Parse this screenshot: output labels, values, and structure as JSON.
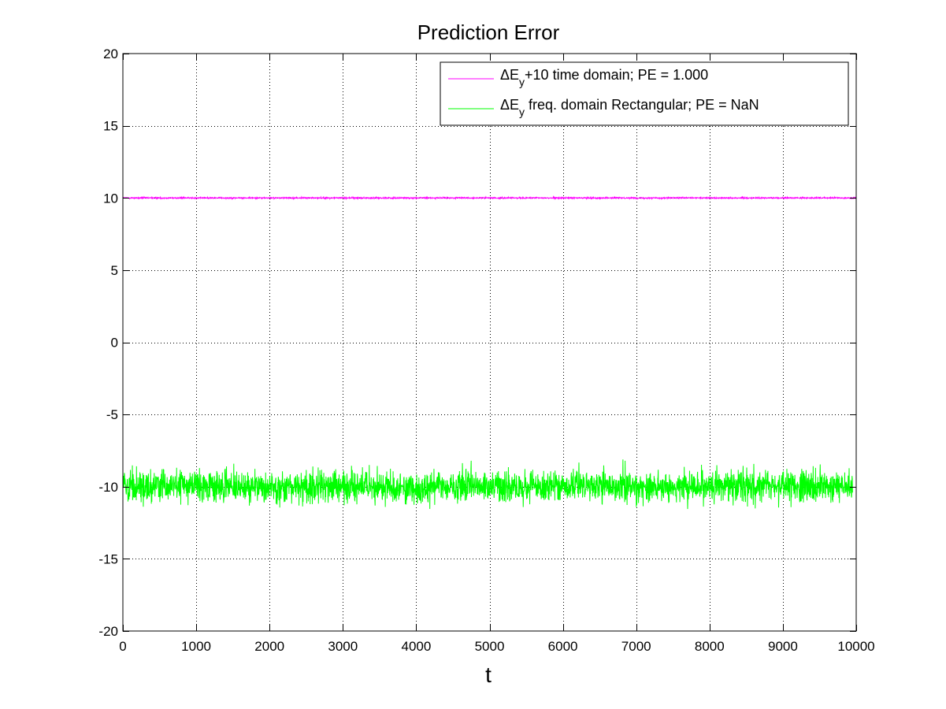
{
  "chart_data": {
    "type": "line",
    "title": "Prediction Error",
    "xlabel": "t",
    "ylabel": "",
    "xlim": [
      0,
      10000
    ],
    "ylim": [
      -20,
      20
    ],
    "xticks": [
      0,
      1000,
      2000,
      3000,
      4000,
      5000,
      6000,
      7000,
      8000,
      9000,
      10000
    ],
    "yticks": [
      20,
      15,
      10,
      5,
      0,
      -5,
      -10,
      -15,
      -20
    ],
    "xtick_labels": [
      "0",
      "1000",
      "2000",
      "3000",
      "4000",
      "5000",
      "6000",
      "7000",
      "8000",
      "9000",
      "10000"
    ],
    "ytick_labels": [
      "20",
      "15",
      "10",
      "5",
      "0",
      "-5",
      "-10",
      "-15",
      "-20"
    ],
    "grid": true,
    "legend_position": "top-right",
    "series": [
      {
        "name": "ΔE_y+10 time domain; PE = 1.000",
        "legend_main": "ΔE",
        "legend_sub": "y",
        "legend_rest": "+10 time domain; PE = 1.000",
        "color": "#ff00ff",
        "x_range": [
          0,
          10000
        ],
        "center": 10,
        "amplitude": 0.05
      },
      {
        "name": "ΔE_y freq. domain Rectangular; PE = NaN",
        "legend_main": "ΔE",
        "legend_sub": "y",
        "legend_rest": " freq. domain Rectangular; PE = NaN",
        "color": "#00ff00",
        "x_range": [
          0,
          9950
        ],
        "center": -10,
        "amplitude": 1.2
      }
    ]
  }
}
